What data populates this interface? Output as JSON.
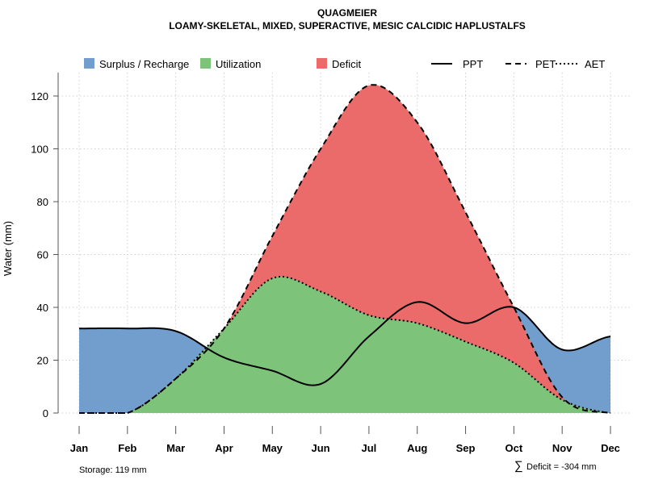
{
  "title": "QUAGMEIER",
  "subtitle": "LOAMY-SKELETAL, MIXED, SUPERACTIVE, MESIC CALCIDIC HAPLUSTALFS",
  "legend": {
    "fills": [
      {
        "label": "Surplus / Recharge",
        "color": "#729ECE"
      },
      {
        "label": "Utilization",
        "color": "#7DC47A"
      },
      {
        "label": "Deficit",
        "color": "#EB6B6B"
      }
    ],
    "lines": [
      {
        "label": "PPT",
        "style": "solid"
      },
      {
        "label": "PET",
        "style": "dashed"
      },
      {
        "label": "AET",
        "style": "dotted"
      }
    ]
  },
  "chart_data": {
    "type": "area",
    "title": "QUAGMEIER",
    "ylabel": "Water (mm)",
    "xlabel": "",
    "ylim": [
      0,
      128
    ],
    "yticks": [
      0,
      20,
      40,
      60,
      80,
      100,
      120
    ],
    "grid": true,
    "legend_position": "top",
    "categories": [
      "Jan",
      "Feb",
      "Mar",
      "Apr",
      "May",
      "Jun",
      "Jul",
      "Aug",
      "Sep",
      "Oct",
      "Nov",
      "Dec"
    ],
    "series": [
      {
        "name": "PPT",
        "values": [
          32,
          32,
          31,
          21,
          16,
          11,
          29,
          42,
          34,
          40,
          24,
          29
        ]
      },
      {
        "name": "PET",
        "values": [
          0,
          0,
          13,
          32,
          67,
          100,
          124,
          110,
          76,
          40,
          6,
          0
        ]
      },
      {
        "name": "AET",
        "values": [
          0,
          0,
          13,
          32,
          51,
          46,
          37,
          34,
          27,
          19,
          5,
          0
        ]
      }
    ]
  },
  "footer": {
    "storage": "Storage: 119 mm",
    "deficit_symbol": "∑",
    "deficit": "Deficit = -304 mm"
  }
}
